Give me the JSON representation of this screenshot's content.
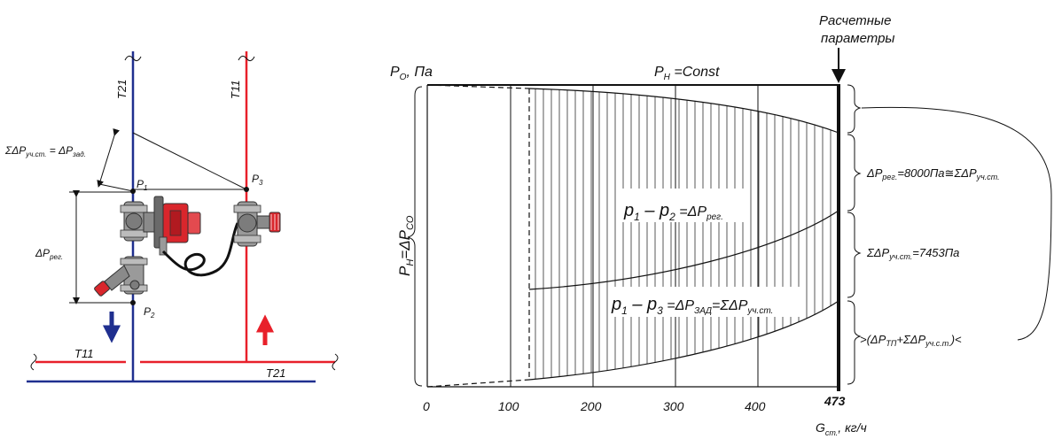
{
  "schematic": {
    "pipe_labels": {
      "t21_riser": "T21",
      "t11_riser": "T11",
      "t11_header": "T11",
      "t21_header": "T21"
    },
    "points": {
      "p1": "P",
      "p1_sub": "1",
      "p2": "P",
      "p2_sub": "2",
      "p3": "P",
      "p3_sub": "3"
    },
    "dim_upper": "ΣΔP",
    "dim_upper_sub": "уч.ст.",
    "dim_upper_eq": " = ΔP",
    "dim_upper_sub2": "зад.",
    "dim_left": "ΔP",
    "dim_left_sub": "рег.",
    "colors": {
      "supply": "#e8202a",
      "return": "#1f2f8f",
      "valve_body": "#8a8a8a",
      "actuator": "#d9262c"
    }
  },
  "graph": {
    "top_label": "Расчетные",
    "top_label2": "параметры",
    "y_axis": "P",
    "y_axis_sub": "O",
    "y_axis_unit": ", Па",
    "pn_label": "P",
    "pn_sub": "Н",
    "pn_rest": " =Const",
    "vertical_label": "P",
    "vertical_label_sub": "Н",
    "vertical_label_eq": "=ΔP",
    "vertical_label_sub2": "CO",
    "region_upper": {
      "a": "p",
      "a_sub": "1",
      "mid": " – p",
      "b_sub": "2",
      "eq": " =ΔP",
      "c_sub": "рег."
    },
    "region_lower": {
      "a": "p",
      "a_sub": "1",
      "mid": " – p",
      "b_sub": "3",
      "eq": " =ΔP",
      "c_sub": "ЗАД",
      "eq2": "=ΣΔP",
      "d_sub": "уч.ст."
    },
    "right_1": {
      "pre": "ΔP",
      "sub": "рег.",
      "post": "=8000Па",
      "approx": "≅",
      "sum": "ΣΔP",
      "sum_sub": "уч.ст."
    },
    "right_2": {
      "pre": "ΣΔP",
      "sub": "уч.ст.",
      "post": "=7453Па"
    },
    "right_3": {
      "pre": ">(ΔP",
      "sub": "ТП",
      "mid": "+ΣΔP",
      "sub2": "уч.с.т.",
      "post": ")<"
    },
    "x_axis_label": "G",
    "x_axis_sub": "ст.",
    "x_axis_unit": ", кг/ч"
  },
  "chart_data": {
    "type": "area",
    "x_ticks": [
      "0",
      "100",
      "200",
      "300",
      "400",
      "473"
    ],
    "x_range": [
      0,
      473
    ],
    "design_flow": 473
  }
}
